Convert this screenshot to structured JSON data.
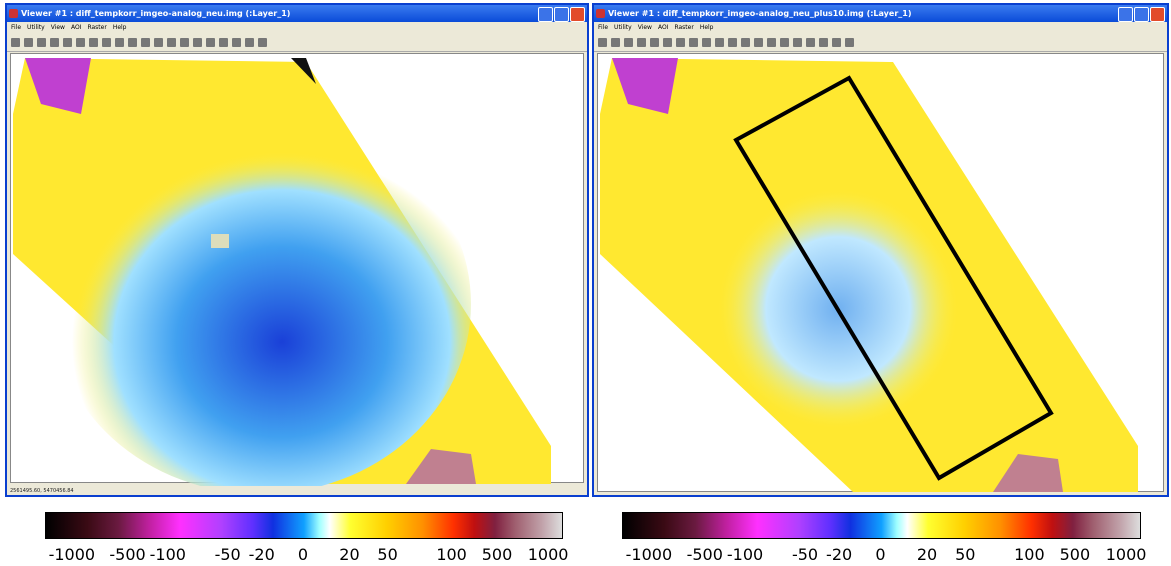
{
  "viewers": [
    {
      "title": "Viewer #1 : diff_tempkorr_imgeo-analog_neu.img (:Layer_1)",
      "menu": [
        "File",
        "Utility",
        "View",
        "AOI",
        "Raster",
        "Help"
      ],
      "status": "2561495.60, 5470456.84"
    },
    {
      "title": "Viewer #1 : diff_tempkorr_imgeo-analog_neu_plus10.img (:Layer_1)",
      "menu": [
        "File",
        "Utility",
        "View",
        "AOI",
        "Raster",
        "Help"
      ]
    }
  ],
  "legends": [
    {
      "labels": [
        -1000,
        -500,
        -100,
        -50,
        -20,
        0,
        20,
        50,
        100,
        500,
        1000
      ]
    },
    {
      "labels": [
        -1000,
        -500,
        -100,
        -50,
        -20,
        0,
        20,
        50,
        100,
        500,
        1000
      ]
    }
  ]
}
